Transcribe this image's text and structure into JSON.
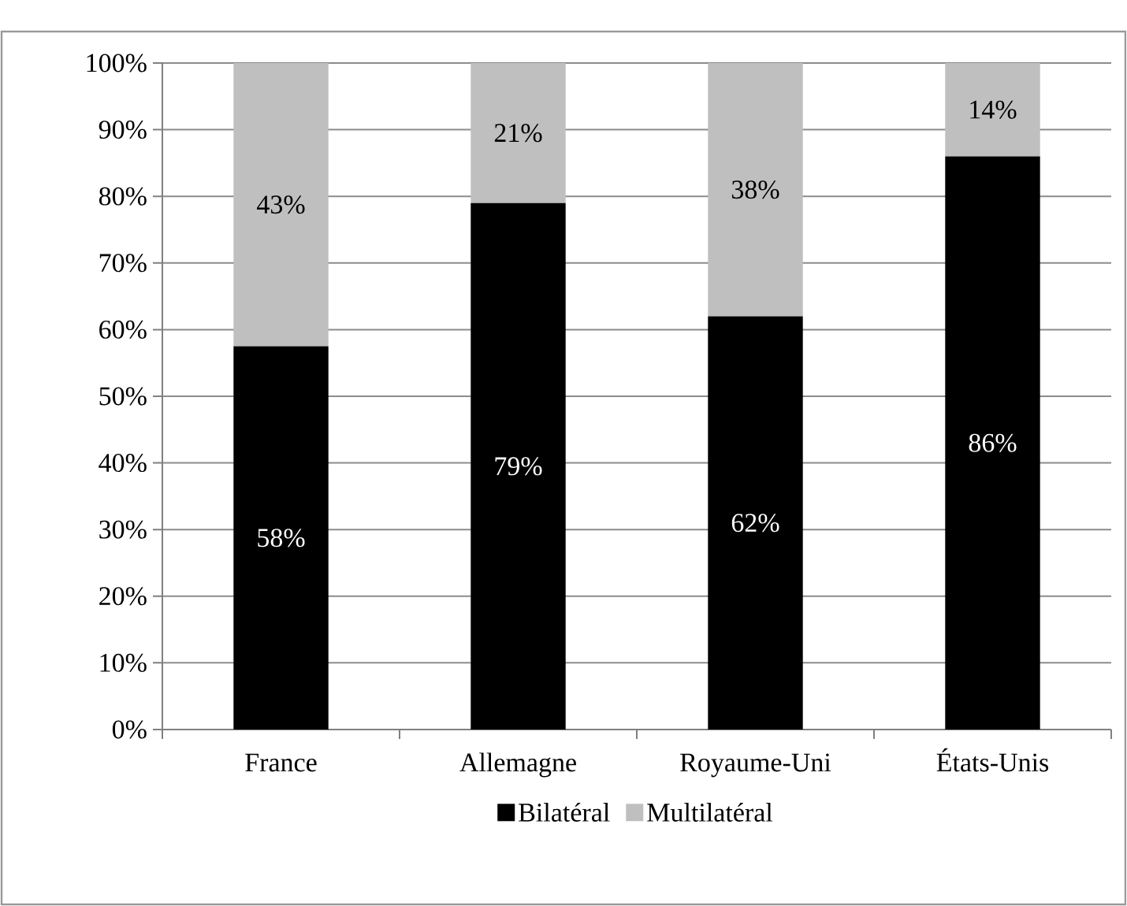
{
  "chart_data": {
    "type": "bar",
    "stacked": true,
    "categories": [
      "France",
      "Allemagne",
      "Royaume-Uni",
      "États-Unis"
    ],
    "series": [
      {
        "name": "Bilatéral",
        "color": "#000000",
        "values": [
          57.5,
          79,
          62,
          86
        ],
        "value_labels": [
          "58%",
          "79%",
          "62%",
          "86%"
        ]
      },
      {
        "name": "Multilatéral",
        "color": "#bfbfbf",
        "values": [
          42.5,
          21,
          38,
          14
        ],
        "value_labels": [
          "43%",
          "21%",
          "38%",
          "14%"
        ]
      }
    ],
    "ylim": [
      0,
      100
    ],
    "yticks": [
      {
        "value": 0,
        "label": "0%"
      },
      {
        "value": 10,
        "label": "10%"
      },
      {
        "value": 20,
        "label": "20%"
      },
      {
        "value": 30,
        "label": "30%"
      },
      {
        "value": 40,
        "label": "40%"
      },
      {
        "value": 50,
        "label": "50%"
      },
      {
        "value": 60,
        "label": "60%"
      },
      {
        "value": 70,
        "label": "70%"
      },
      {
        "value": 80,
        "label": "80%"
      },
      {
        "value": 90,
        "label": "90%"
      },
      {
        "value": 100,
        "label": "100%"
      }
    ],
    "grid": "y",
    "legend": "bottom"
  }
}
